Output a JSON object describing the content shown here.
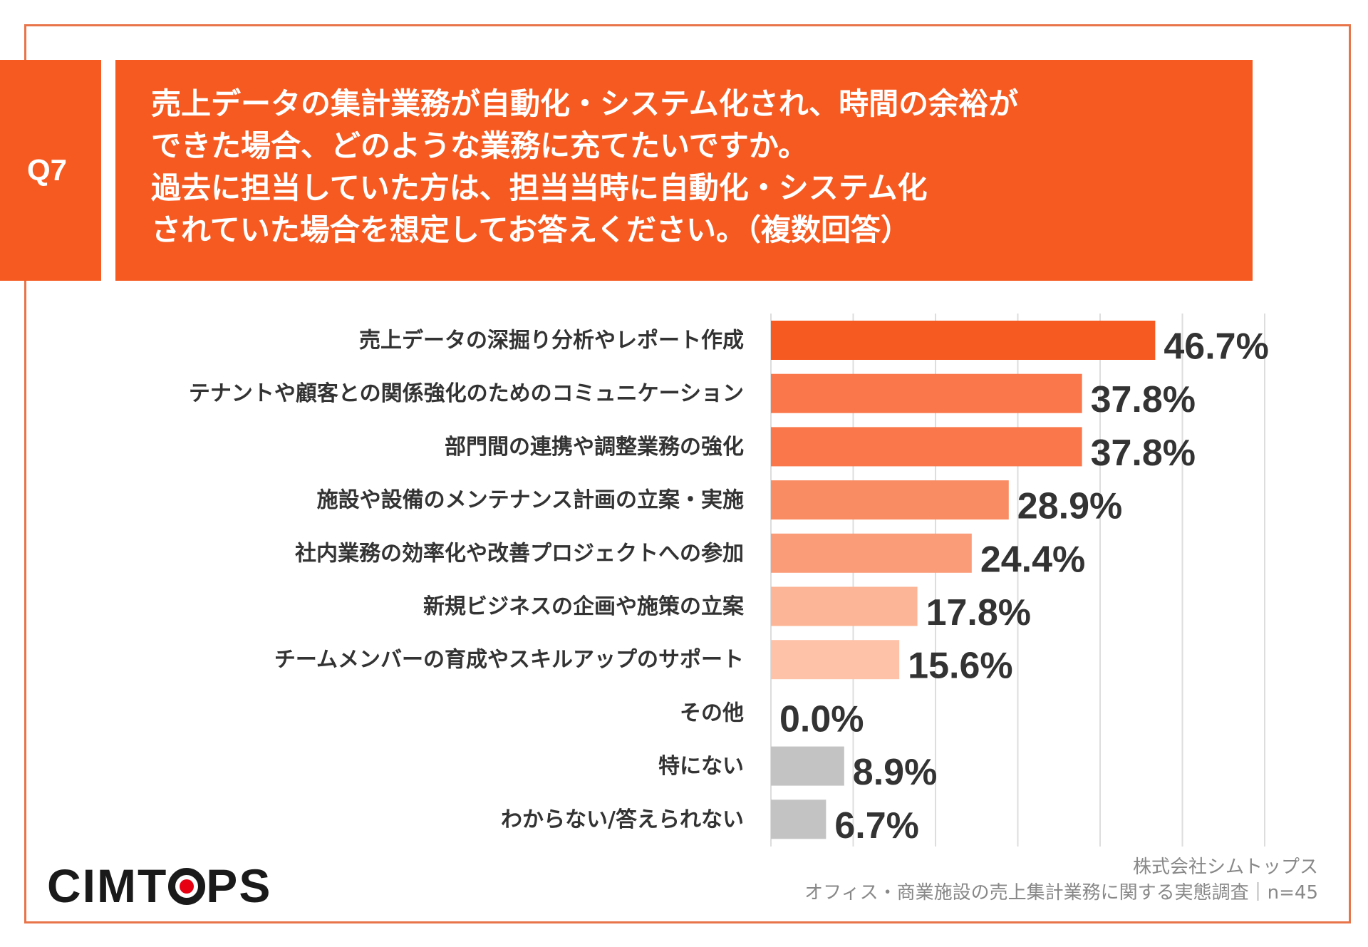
{
  "question": {
    "tag": "Q7",
    "lines": [
      "売上データの集計業務が自動化・システム化され、時間の余裕が",
      "できた場合、どのような業務に充てたいですか。",
      "過去に担当していた方は、担当当時に自動化・システム化",
      "されていた場合を想定してお答えください。（複数回答）"
    ]
  },
  "chart_data": {
    "type": "bar",
    "orientation": "horizontal",
    "categories": [
      "売上データの深掘り分析やレポート作成",
      "テナントや顧客との関係強化のためのコミュニケーション",
      "部門間の連携や調整業務の強化",
      "施設や設備のメンテナンス計画の立案・実施",
      "社内業務の効率化や改善プロジェクトへの参加",
      "新規ビジネスの企画や施策の立案",
      "チームメンバーの育成やスキルアップのサポート",
      "その他",
      "特にない",
      "わからない/答えられない"
    ],
    "values": [
      46.7,
      37.8,
      37.8,
      28.9,
      24.4,
      17.8,
      15.6,
      0.0,
      8.9,
      6.7
    ],
    "value_labels": [
      "46.7%",
      "37.8%",
      "37.8%",
      "28.9%",
      "24.4%",
      "17.8%",
      "15.6%",
      "0.0%",
      "8.9%",
      "6.7%"
    ],
    "colors": [
      "#f65a20",
      "#f9774a",
      "#f9774a",
      "#fa8c63",
      "#fb9c79",
      "#fcb596",
      "#fdc2a8",
      "#fdc2a8",
      "#c3c3c3",
      "#c3c3c3"
    ],
    "xlim": [
      0,
      60
    ],
    "grid": true,
    "gridline_color": "#dddddd"
  },
  "footer": {
    "logo_pre": "CIMT",
    "logo_post": "PS",
    "logo_dot_color": "#e60012",
    "source_company": "株式会社シムトップス",
    "source_survey": "オフィス・商業施設の売上集計業務に関する実態調査｜n=45"
  }
}
